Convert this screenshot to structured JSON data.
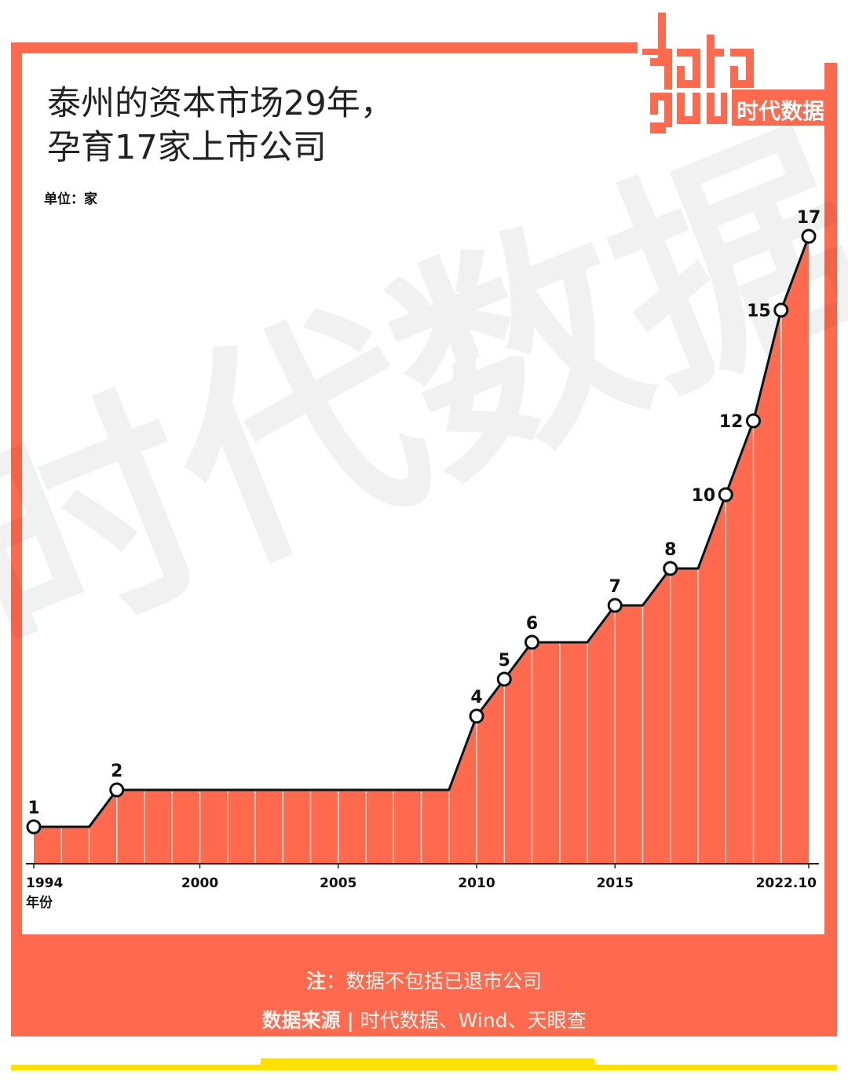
{
  "title": {
    "line1": "泰州的资本市场29年，",
    "line2": "孕育17家上市公司"
  },
  "unit_label": "单位：家",
  "logo": {
    "text_latin": "data",
    "text_cn": "时代数据"
  },
  "watermark": "时代数据",
  "colors": {
    "accent": "#ff6a4f",
    "area_fill": "#ff6a4f",
    "line": "#111111",
    "yellow": "#ffe100",
    "grid": "#ffe2d8"
  },
  "footer": {
    "note_label": "注",
    "note_sep": "：",
    "note_text": "数据不包括已退市公司",
    "source_label": "数据来源",
    "source_sep": "|",
    "source_text": "时代数据、Wind、天眼查"
  },
  "chart_data": {
    "type": "area",
    "title": "泰州的资本市场29年，孕育17家上市公司",
    "xlabel": "年份",
    "ylabel": "单位：家",
    "x": [
      1994,
      1995,
      1996,
      1997,
      1998,
      1999,
      2000,
      2001,
      2002,
      2003,
      2004,
      2005,
      2006,
      2007,
      2008,
      2009,
      2010,
      2011,
      2012,
      2013,
      2014,
      2015,
      2016,
      2017,
      2018,
      2019,
      2020,
      2021,
      2022
    ],
    "values": [
      1,
      1,
      1,
      2,
      2,
      2,
      2,
      2,
      2,
      2,
      2,
      2,
      2,
      2,
      2,
      2,
      4,
      5,
      6,
      6,
      6,
      7,
      7,
      8,
      8,
      10,
      12,
      15,
      17
    ],
    "labeled_points": [
      {
        "year": 1994,
        "value": 1
      },
      {
        "year": 1997,
        "value": 2
      },
      {
        "year": 2010,
        "value": 4
      },
      {
        "year": 2011,
        "value": 5
      },
      {
        "year": 2012,
        "value": 6
      },
      {
        "year": 2015,
        "value": 7
      },
      {
        "year": 2017,
        "value": 8
      },
      {
        "year": 2019,
        "value": 10
      },
      {
        "year": 2020,
        "value": 12
      },
      {
        "year": 2021,
        "value": 15
      },
      {
        "year": 2022,
        "value": 17
      }
    ],
    "x_tick_labels": [
      {
        "year": 1994,
        "label": "1994"
      },
      {
        "year": 2000,
        "label": "2000"
      },
      {
        "year": 2005,
        "label": "2005"
      },
      {
        "year": 2010,
        "label": "2010"
      },
      {
        "year": 2015,
        "label": "2015"
      },
      {
        "year": 2022,
        "label": "2022.10"
      }
    ],
    "ylim": [
      0,
      17
    ],
    "grid": false,
    "legend": "none"
  }
}
